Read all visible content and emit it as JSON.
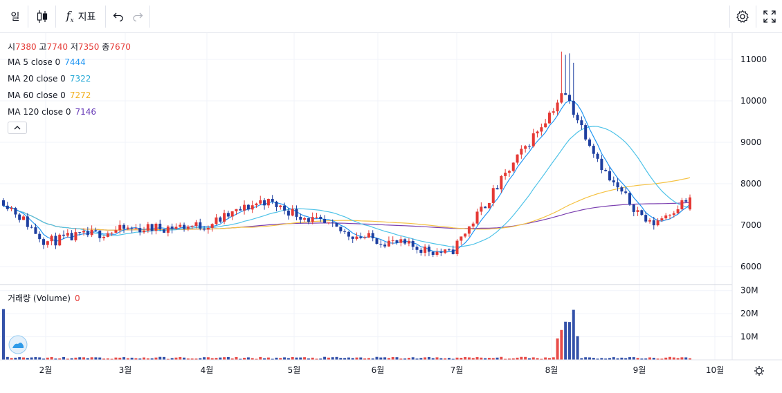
{
  "toolbar": {
    "interval": "일",
    "indicators_label": "지표"
  },
  "legend": {
    "ohlc": [
      {
        "label": "시",
        "value": "7380"
      },
      {
        "label": "고",
        "value": "7740"
      },
      {
        "label": "저",
        "value": "7350"
      },
      {
        "label": "종",
        "value": "7670"
      }
    ],
    "ma": [
      {
        "label": "MA 5 close 0",
        "value": "7444",
        "color": "#2196f3"
      },
      {
        "label": "MA 20 close 0",
        "value": "7322",
        "color": "#26a9d6"
      },
      {
        "label": "MA 60 close 0",
        "value": "7272",
        "color": "#f2b020"
      },
      {
        "label": "MA 120 close 0",
        "value": "7146",
        "color": "#673ab7"
      }
    ],
    "volume_label": "거래량 (Volume)",
    "volume_value": "0"
  },
  "colors": {
    "up": "#e53935",
    "down": "#1e3fa0",
    "ma5": "#2196f3",
    "ma20": "#4fc3e8",
    "ma60": "#f5c242",
    "ma120": "#7b3fb0"
  },
  "chart_data": [
    {
      "type": "candlestick",
      "y_ticks": [
        "11000",
        "10000",
        "9000",
        "8000",
        "7000",
        "6000"
      ],
      "x_ticks": [
        "2월",
        "3월",
        "4월",
        "5월",
        "6월",
        "7월",
        "8월",
        "9월",
        "10월"
      ],
      "ylim": [
        5600,
        11500
      ],
      "anchors": {
        "date": [
          "1월 중",
          "2월",
          "3월",
          "4월",
          "4월 말",
          "5월 말",
          "6월 말",
          "8월 초",
          "8월 중",
          "9월 초",
          "9월 말"
        ],
        "close": [
          7600,
          6600,
          6900,
          7000,
          7600,
          6800,
          6300,
          10200,
          8100,
          7000,
          7670
        ]
      },
      "last": {
        "open": 7380,
        "high": 7740,
        "low": 7350,
        "close": 7670
      },
      "ma": {
        "ma5": 7444,
        "ma20": 7322,
        "ma60": 7272,
        "ma120": 7146
      }
    },
    {
      "type": "bar",
      "title": "거래량 (Volume)",
      "y_ticks": [
        "30M",
        "20M",
        "10M"
      ],
      "ylim": [
        0,
        32000000
      ]
    }
  ]
}
